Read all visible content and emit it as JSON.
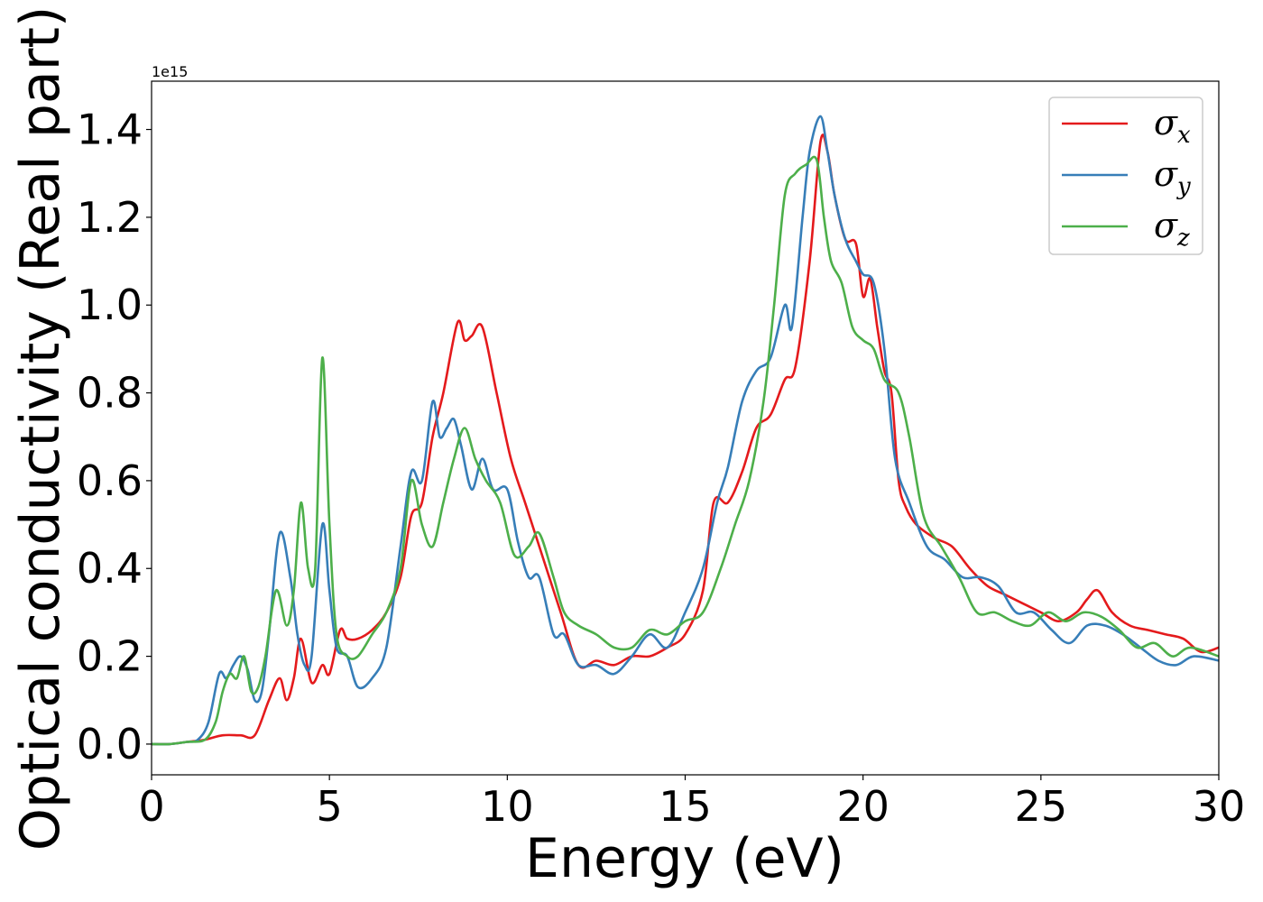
{
  "chart_data": {
    "type": "line",
    "title": "",
    "xlabel": "Energy (eV)",
    "ylabel": "Optical conductivity (Real part)",
    "y_offset_label": "1e15",
    "xlim": [
      0,
      30
    ],
    "ylim": [
      -0.07,
      1.51
    ],
    "xticks": [
      0,
      5,
      10,
      15,
      20,
      25,
      30
    ],
    "xtick_labels": [
      "0",
      "5",
      "10",
      "15",
      "20",
      "25",
      "30"
    ],
    "yticks": [
      0.0,
      0.2,
      0.4,
      0.6,
      0.8,
      1.0,
      1.2,
      1.4
    ],
    "ytick_labels": [
      "0.0",
      "0.2",
      "0.4",
      "0.6",
      "0.8",
      "1.0",
      "1.2",
      "1.4"
    ],
    "grid": false,
    "legend_position": "top-right",
    "series": [
      {
        "name": "σx",
        "symbol": "σ",
        "subscript": "x",
        "color": "#e41a1c",
        "x": [
          0,
          0.5,
          1.0,
          1.5,
          2.0,
          2.5,
          2.9,
          3.3,
          3.6,
          3.8,
          4.0,
          4.2,
          4.5,
          4.8,
          5.0,
          5.3,
          5.5,
          5.8,
          6.2,
          6.6,
          7.0,
          7.3,
          7.6,
          7.9,
          8.2,
          8.6,
          8.8,
          9.0,
          9.3,
          9.7,
          10.1,
          10.5,
          10.9,
          11.5,
          12.0,
          12.5,
          13.0,
          13.5,
          14.0,
          14.5,
          15.0,
          15.5,
          15.8,
          16.2,
          16.6,
          17.0,
          17.4,
          17.8,
          18.1,
          18.5,
          18.8,
          19.0,
          19.2,
          19.5,
          19.8,
          20.0,
          20.2,
          20.4,
          20.6,
          20.8,
          21.0,
          21.2,
          21.5,
          22.0,
          22.5,
          23.0,
          23.5,
          24.0,
          24.5,
          25.0,
          25.5,
          26.0,
          26.3,
          26.6,
          27.0,
          27.5,
          28.0,
          28.5,
          29.0,
          29.5,
          30.0
        ],
        "values": [
          0,
          0,
          0.005,
          0.01,
          0.02,
          0.02,
          0.02,
          0.1,
          0.15,
          0.1,
          0.15,
          0.24,
          0.14,
          0.18,
          0.16,
          0.26,
          0.24,
          0.24,
          0.26,
          0.3,
          0.38,
          0.52,
          0.55,
          0.7,
          0.8,
          0.96,
          0.92,
          0.93,
          0.95,
          0.8,
          0.65,
          0.55,
          0.45,
          0.3,
          0.18,
          0.19,
          0.18,
          0.2,
          0.2,
          0.22,
          0.25,
          0.35,
          0.55,
          0.55,
          0.62,
          0.72,
          0.75,
          0.83,
          0.86,
          1.1,
          1.37,
          1.35,
          1.25,
          1.15,
          1.14,
          1.02,
          1.06,
          0.95,
          0.85,
          0.8,
          0.6,
          0.54,
          0.5,
          0.47,
          0.45,
          0.4,
          0.36,
          0.34,
          0.32,
          0.3,
          0.28,
          0.3,
          0.33,
          0.35,
          0.3,
          0.27,
          0.26,
          0.25,
          0.24,
          0.21,
          0.22
        ]
      },
      {
        "name": "σy",
        "symbol": "σ",
        "subscript": "y",
        "color": "#377eb8",
        "x": [
          0,
          0.5,
          1.0,
          1.3,
          1.6,
          1.9,
          2.1,
          2.3,
          2.5,
          2.7,
          2.9,
          3.1,
          3.3,
          3.6,
          3.9,
          4.1,
          4.3,
          4.5,
          4.8,
          5.0,
          5.2,
          5.5,
          5.8,
          6.2,
          6.6,
          7.0,
          7.3,
          7.6,
          7.9,
          8.1,
          8.3,
          8.5,
          8.7,
          9.0,
          9.3,
          9.6,
          10.0,
          10.3,
          10.6,
          10.9,
          11.3,
          11.6,
          12.0,
          12.5,
          13.0,
          13.5,
          14.0,
          14.5,
          15.0,
          15.5,
          15.9,
          16.2,
          16.6,
          17.0,
          17.4,
          17.8,
          18.0,
          18.3,
          18.5,
          18.8,
          19.0,
          19.2,
          19.5,
          19.8,
          20.0,
          20.3,
          20.6,
          20.9,
          21.3,
          21.8,
          22.3,
          22.8,
          23.3,
          23.8,
          24.3,
          24.8,
          25.3,
          25.8,
          26.3,
          26.8,
          27.3,
          27.8,
          28.3,
          28.8,
          29.3,
          30.0
        ],
        "values": [
          0,
          0,
          0.005,
          0.01,
          0.05,
          0.16,
          0.15,
          0.18,
          0.2,
          0.17,
          0.1,
          0.12,
          0.25,
          0.48,
          0.38,
          0.25,
          0.18,
          0.2,
          0.5,
          0.35,
          0.22,
          0.2,
          0.13,
          0.15,
          0.22,
          0.45,
          0.62,
          0.6,
          0.78,
          0.7,
          0.72,
          0.74,
          0.68,
          0.58,
          0.65,
          0.58,
          0.58,
          0.46,
          0.38,
          0.38,
          0.25,
          0.25,
          0.18,
          0.18,
          0.16,
          0.2,
          0.25,
          0.22,
          0.3,
          0.4,
          0.55,
          0.63,
          0.78,
          0.85,
          0.88,
          1.0,
          0.95,
          1.2,
          1.35,
          1.43,
          1.35,
          1.25,
          1.15,
          1.1,
          1.07,
          1.05,
          0.9,
          0.65,
          0.55,
          0.45,
          0.42,
          0.38,
          0.38,
          0.36,
          0.3,
          0.3,
          0.26,
          0.23,
          0.27,
          0.27,
          0.25,
          0.22,
          0.19,
          0.18,
          0.2,
          0.19
        ]
      },
      {
        "name": "σz",
        "symbol": "σ",
        "subscript": "z",
        "color": "#4daf4a",
        "x": [
          0,
          0.5,
          1.0,
          1.5,
          1.8,
          2.0,
          2.2,
          2.4,
          2.6,
          2.8,
          3.0,
          3.2,
          3.5,
          3.8,
          4.0,
          4.2,
          4.4,
          4.6,
          4.8,
          5.0,
          5.2,
          5.5,
          5.8,
          6.2,
          6.6,
          7.0,
          7.3,
          7.6,
          7.9,
          8.2,
          8.5,
          8.8,
          9.1,
          9.4,
          9.8,
          10.2,
          10.6,
          10.9,
          11.3,
          11.6,
          12.0,
          12.5,
          13.0,
          13.5,
          14.0,
          14.5,
          15.0,
          15.5,
          16.0,
          16.4,
          16.8,
          17.2,
          17.5,
          17.8,
          18.1,
          18.4,
          18.7,
          18.9,
          19.1,
          19.4,
          19.7,
          20.0,
          20.3,
          20.6,
          21.0,
          21.3,
          21.7,
          22.2,
          22.7,
          23.2,
          23.7,
          24.2,
          24.7,
          25.2,
          25.7,
          26.2,
          26.7,
          27.2,
          27.7,
          28.2,
          28.7,
          29.2,
          30.0
        ],
        "values": [
          0,
          0,
          0.005,
          0.01,
          0.05,
          0.12,
          0.16,
          0.15,
          0.2,
          0.12,
          0.13,
          0.2,
          0.35,
          0.27,
          0.35,
          0.55,
          0.4,
          0.4,
          0.88,
          0.5,
          0.25,
          0.2,
          0.2,
          0.25,
          0.3,
          0.4,
          0.6,
          0.5,
          0.45,
          0.55,
          0.65,
          0.72,
          0.65,
          0.6,
          0.55,
          0.43,
          0.45,
          0.48,
          0.38,
          0.3,
          0.27,
          0.25,
          0.22,
          0.22,
          0.26,
          0.25,
          0.28,
          0.3,
          0.4,
          0.5,
          0.6,
          0.78,
          1.0,
          1.25,
          1.3,
          1.32,
          1.33,
          1.2,
          1.1,
          1.05,
          0.95,
          0.92,
          0.9,
          0.83,
          0.8,
          0.7,
          0.52,
          0.45,
          0.38,
          0.3,
          0.3,
          0.28,
          0.27,
          0.3,
          0.28,
          0.3,
          0.29,
          0.26,
          0.22,
          0.23,
          0.2,
          0.22,
          0.2
        ]
      }
    ]
  }
}
